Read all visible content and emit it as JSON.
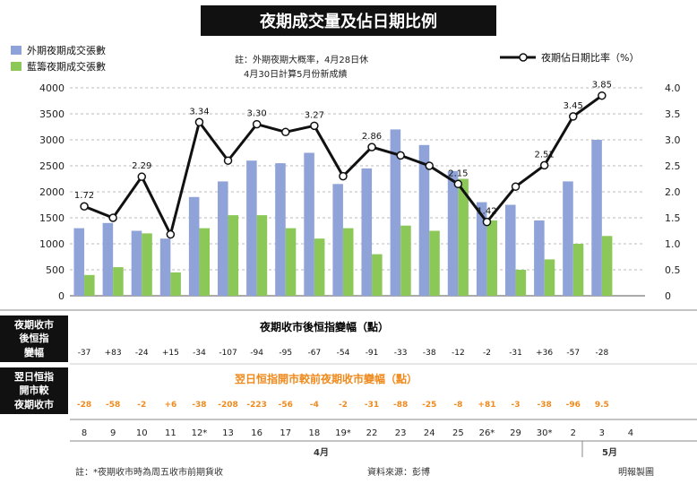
{
  "title": "夜期成交量及佔日期比例",
  "legend": {
    "prev_night": "外期夜期成交張數",
    "prev_green": "藍籌夜期成交張數",
    "ratio": "夜期佔日期比率（%）",
    "note_1": "註：外期夜期大概率，4月28日休",
    "note_2": "4月30日計算5月份新成績"
  },
  "rows": {
    "label_1": "夜期收市\n後恒指\n變幅",
    "title_1": "夜期收市後恒指變幅（點）",
    "label_2": "翌日恒指\n開市較\n夜期收市",
    "title_2": "翌日恒指開市較前夜期收市變幅（點）"
  },
  "month_labels": [
    "4月",
    "5月"
  ],
  "footer_note": "註：*夜期收市時為周五收市前期貨收",
  "footer_source": "資料來源：彭博",
  "footer_credit": "明報製圖",
  "colors": {
    "blue": "#8fa3d9",
    "green": "#8cc858",
    "line": "#111111",
    "orange": "#f08a1c"
  },
  "chart_data": {
    "type": "bar",
    "categories": [
      "8",
      "9",
      "10",
      "11",
      "12*",
      "13",
      "16",
      "17",
      "18",
      "19*",
      "22",
      "23",
      "24",
      "25",
      "26*",
      "29",
      "30*",
      "2",
      "3",
      "4"
    ],
    "series": [
      {
        "name": "外期夜期成交張數",
        "values": [
          1300,
          1400,
          1250,
          1100,
          1900,
          2200,
          2600,
          2550,
          2750,
          2150,
          2450,
          3200,
          2900,
          2400,
          1800,
          1750,
          1450,
          2200,
          3000,
          null
        ]
      },
      {
        "name": "藍籌夜期成交張數",
        "values": [
          400,
          550,
          1200,
          450,
          1300,
          1550,
          1550,
          1300,
          1100,
          1300,
          800,
          1350,
          1250,
          2250,
          1450,
          500,
          700,
          1000,
          1150,
          null
        ]
      }
    ],
    "line": {
      "name": "夜期佔日期比率（%）",
      "values": [
        1.72,
        1.5,
        2.29,
        1.18,
        3.34,
        2.6,
        3.3,
        3.15,
        3.27,
        2.3,
        2.86,
        2.7,
        2.5,
        2.15,
        1.42,
        2.1,
        2.51,
        3.45,
        3.85,
        null
      ]
    },
    "line_labels": [
      "1.72",
      "",
      "2.29",
      "",
      "3.34",
      "",
      "3.30",
      "",
      "3.27",
      "",
      "2.86",
      "",
      "",
      "2.15",
      "1.42",
      "",
      "2.51",
      "3.45",
      "3.85",
      ""
    ],
    "ylim_left": [
      0,
      4000
    ],
    "ylim_right": [
      0,
      4.0
    ],
    "yticks_left": [
      "4000",
      "3500",
      "3000",
      "2500",
      "2000",
      "1500",
      "1000",
      "500",
      "0"
    ],
    "yticks_right": [
      "4.0",
      "3.5",
      "3.0",
      "2.5",
      "2.0",
      "1.5",
      "1.0",
      "0.5",
      "0"
    ],
    "row1_values": [
      "-37",
      "+83",
      "-24",
      "+15",
      "-34",
      "-107",
      "-94",
      "-95",
      "-67",
      "-54",
      "-91",
      "-33",
      "-38",
      "-12",
      "-2",
      "-31",
      "+36",
      "-57",
      "-28",
      ""
    ],
    "row2_values": [
      "-28",
      "-58",
      "-2",
      "+6",
      "-38",
      "-208",
      "-223",
      "-56",
      "-4",
      "-2",
      "-31",
      "-88",
      "-25",
      "-8",
      "+81",
      "-3",
      "-38",
      "-96",
      "9.5",
      ""
    ]
  }
}
